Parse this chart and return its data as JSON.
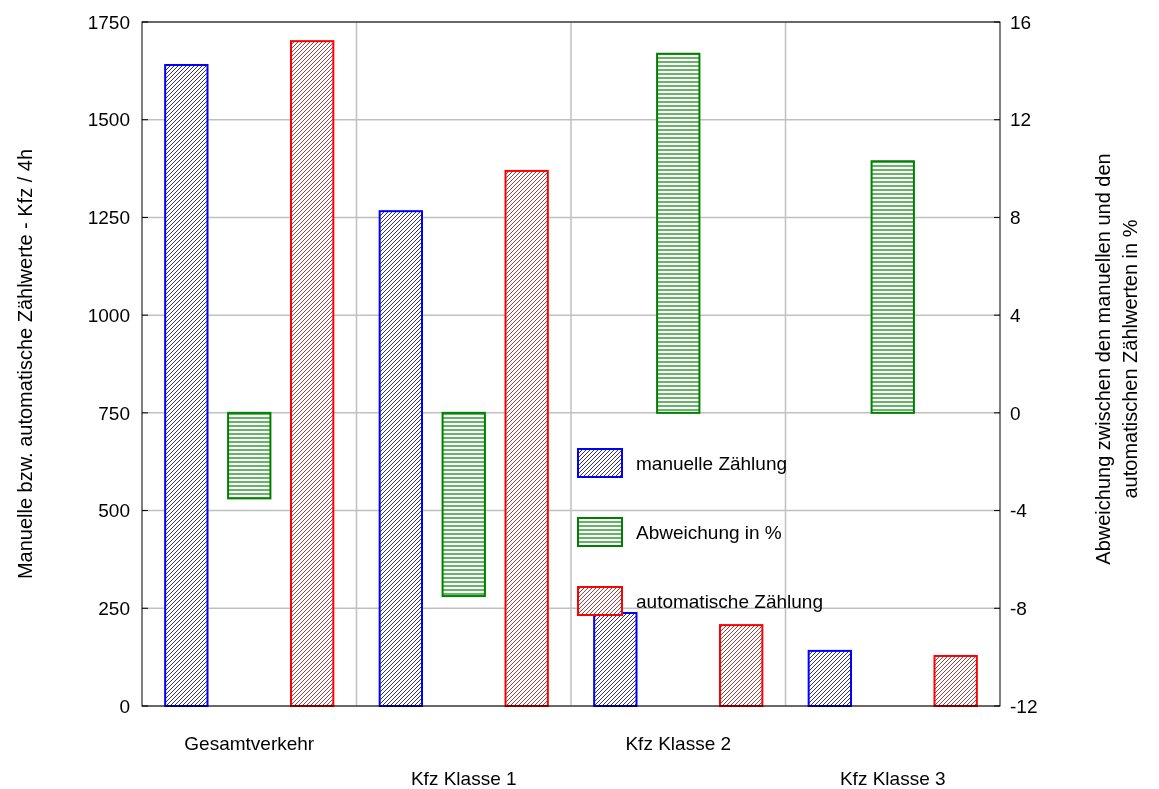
{
  "chart_data": {
    "type": "bar",
    "ylabel": "Manuelle bzw. automatische Zählwerte - Kfz / 4h",
    "y2label": "Abweichung zwischen den manuellen und den\nautomatischen Zählwerten in %",
    "categories": [
      "Gesamtverkehr",
      "Kfz Klasse 1",
      "Kfz Klasse 2",
      "Kfz Klasse 3"
    ],
    "series": [
      {
        "name": "manuelle Zählung",
        "color": "#0000ff",
        "values": [
          1640,
          1266,
          238,
          141
        ]
      },
      {
        "name": "Abweichung in %",
        "color": "#008000",
        "values": [
          -3.5,
          -7.5,
          14.7,
          10.3
        ],
        "axis": "y2"
      },
      {
        "name": "automatische Zählung",
        "color": "#ff0000",
        "values": [
          1701,
          1369,
          207,
          128
        ]
      }
    ],
    "ylim": [
      0,
      1750
    ],
    "yticks": [
      0,
      250,
      500,
      750,
      1000,
      1250,
      1500,
      1750
    ],
    "y2lim": [
      -12,
      16
    ],
    "y2ticks": [
      -12,
      -8,
      -4,
      0,
      4,
      8,
      12,
      16
    ],
    "grid": true,
    "legend": "right"
  }
}
